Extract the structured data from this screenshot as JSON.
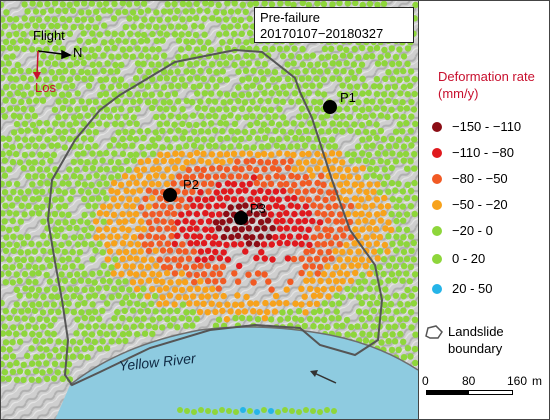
{
  "title": {
    "line1": "Pre-failure",
    "line2": "20170107−20180327"
  },
  "orientation": {
    "flight": "Flight",
    "north": "N",
    "los": "Los"
  },
  "legend": {
    "title": "Deformation rate (mm/y)",
    "classes": [
      {
        "label": "−150 - −110",
        "color": "#8b0d15"
      },
      {
        "label": "−110 - −80",
        "color": "#e0191d"
      },
      {
        "label": "−80 - −50",
        "color": "#f15a24"
      },
      {
        "label": "−50 - −20",
        "color": "#f7a21b"
      },
      {
        "label": "−20 - 0",
        "color": "#8ed63b"
      },
      {
        "label": "0 - 20",
        "color": "#8ed63b"
      },
      {
        "label": "20 - 50",
        "color": "#25b4e8"
      }
    ],
    "boundary_label": "Landslide boundary"
  },
  "scale_bar": {
    "t0": "0",
    "t1": "80",
    "t2": "160",
    "unit": "m"
  },
  "points": [
    {
      "label": "P1"
    },
    {
      "label": "P2"
    },
    {
      "label": "P3"
    }
  ],
  "river_label": "Yellow River",
  "colors": {
    "river": "#8ecbe0",
    "terrain": "#c9c9c9",
    "boundary": "#555555"
  }
}
